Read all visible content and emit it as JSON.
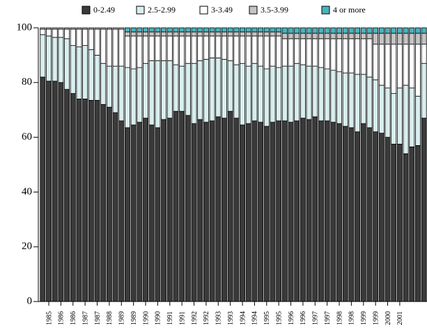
{
  "chart_data": {
    "type": "stacked_bar",
    "categories": [
      null,
      "1985",
      null,
      "1986",
      null,
      "1986",
      null,
      "1987",
      null,
      "1987",
      null,
      "1988",
      null,
      "1989",
      null,
      "1989",
      null,
      "1990",
      null,
      "1990",
      null,
      "1991",
      null,
      "1991",
      null,
      "1992",
      null,
      "1992",
      null,
      "1993",
      null,
      "1993",
      null,
      "1994",
      null,
      "1994",
      null,
      "1995",
      null,
      "1995",
      null,
      "1996",
      null,
      "1996",
      null,
      "1997",
      null,
      "1997",
      null,
      "1998",
      null,
      "1998",
      null,
      "1999",
      null,
      "1999",
      null,
      "2000",
      null,
      "2001",
      null,
      null,
      null,
      null
    ],
    "series": [
      {
        "name": "0-2.49",
        "color": "#3a3a3a",
        "values": [
          82,
          80.5,
          80.5,
          80,
          77.5,
          76,
          74,
          74,
          73.5,
          73.5,
          72,
          71,
          69,
          66,
          63.5,
          64.5,
          65.5,
          67,
          64.5,
          63.5,
          66.5,
          67,
          69.5,
          69.5,
          68,
          65,
          66.5,
          65.5,
          66,
          67.5,
          67,
          69.5,
          67,
          64.5,
          65,
          66,
          65.5,
          64,
          65.5,
          66,
          66,
          65.5,
          66,
          67,
          66.5,
          67.5,
          66,
          66,
          65.5,
          65,
          64,
          63.5,
          62,
          65,
          63.5,
          62,
          61.5,
          60,
          57.5,
          57.5,
          54,
          56.5,
          57,
          67
        ]
      },
      {
        "name": "2.5-2.99",
        "color": "#d9eeee",
        "values": [
          15.5,
          16.5,
          16,
          16.5,
          18.5,
          17.5,
          19,
          19.5,
          18.5,
          16.5,
          15,
          15,
          17,
          20,
          22,
          20.5,
          20,
          20,
          23.5,
          24.5,
          21.5,
          21,
          17,
          16.5,
          19,
          22,
          21.5,
          23,
          23,
          21.5,
          21.5,
          18.5,
          19.5,
          22.5,
          21,
          21,
          20.5,
          21,
          20.5,
          19.5,
          20,
          20.5,
          21,
          19.5,
          19.5,
          18.5,
          19.5,
          19,
          19,
          19,
          19.5,
          20,
          21,
          18,
          18.5,
          19,
          17.5,
          18,
          18.5,
          20.5,
          25,
          21.5,
          18,
          20
        ]
      },
      {
        "name": "3-3.49",
        "color": "#ffffff",
        "values": [
          2,
          2.5,
          3,
          3,
          3.5,
          6,
          6.5,
          6,
          7.5,
          9.5,
          12.5,
          13.5,
          13.5,
          13.5,
          11.5,
          12,
          11.5,
          10,
          9,
          9,
          9,
          9,
          10.5,
          11,
          10,
          10,
          9,
          8.5,
          8,
          8,
          8.5,
          9,
          10.5,
          10,
          11,
          10,
          11,
          12,
          11,
          11.5,
          10,
          10,
          9,
          9.5,
          10,
          10,
          10.5,
          11,
          11.5,
          12,
          12.5,
          12.5,
          13,
          13,
          14,
          13,
          15,
          16,
          18,
          16,
          15,
          16,
          19,
          7
        ]
      },
      {
        "name": "3.5-3.99",
        "color": "#c4c4c4",
        "values": [
          0.5,
          0.5,
          0.5,
          0.5,
          0.5,
          0.5,
          0.5,
          0.5,
          0.5,
          0.5,
          0.5,
          0.5,
          0.5,
          0.5,
          1.5,
          1.5,
          1.5,
          1.5,
          1.5,
          1.5,
          1.5,
          1.5,
          1.5,
          1.5,
          1.5,
          1.5,
          1.5,
          1.5,
          1.5,
          1.5,
          1.5,
          1.5,
          1.5,
          1.5,
          1.5,
          1.5,
          1.5,
          1.5,
          1.5,
          1.5,
          2,
          2,
          2,
          2,
          2,
          2,
          2,
          2,
          2,
          2,
          2,
          2,
          2,
          2,
          2,
          4,
          4,
          4,
          4,
          4,
          4,
          4,
          4,
          4
        ]
      },
      {
        "name": "4 or more",
        "color": "#4bb3bd",
        "values": [
          0,
          0,
          0,
          0,
          0,
          0,
          0,
          0,
          0,
          0,
          0,
          0,
          0,
          0,
          1.5,
          1.5,
          1.5,
          1.5,
          1.5,
          1.5,
          1.5,
          1.5,
          1.5,
          1.5,
          1.5,
          1.5,
          1.5,
          1.5,
          1.5,
          1.5,
          1.5,
          1.5,
          1.5,
          1.5,
          1.5,
          1.5,
          1.5,
          1.5,
          1.5,
          1.5,
          2,
          2,
          2,
          2,
          2,
          2,
          2,
          2,
          2,
          2,
          2,
          2,
          2,
          2,
          2,
          2,
          2,
          2,
          2,
          2,
          2,
          2,
          2,
          2
        ]
      }
    ],
    "ylim": [
      0,
      100
    ],
    "yticks": [
      0,
      20,
      40,
      60,
      80,
      100
    ]
  }
}
